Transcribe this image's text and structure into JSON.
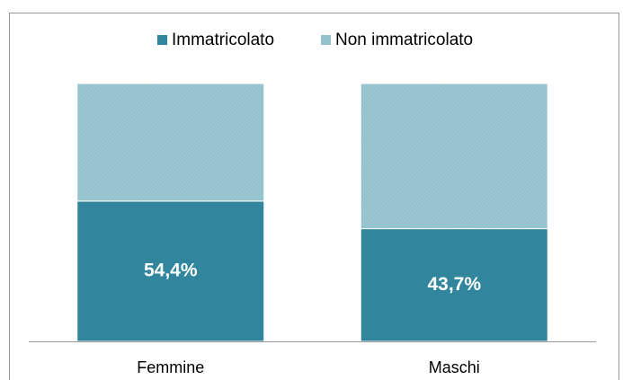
{
  "chart_data": {
    "type": "stacked_bar",
    "categories": [
      "Femmine",
      "Maschi"
    ],
    "series": [
      {
        "name": "Immatricolato",
        "color": "#31859c",
        "values": [
          54.4,
          43.7
        ],
        "value_labels": [
          "54,4%",
          "43,7%"
        ]
      },
      {
        "name": "Non immatricolato",
        "color": "#93c1cc",
        "values": [
          45.6,
          56.3
        ]
      }
    ],
    "ylim": [
      0,
      100
    ],
    "legend": "top"
  }
}
